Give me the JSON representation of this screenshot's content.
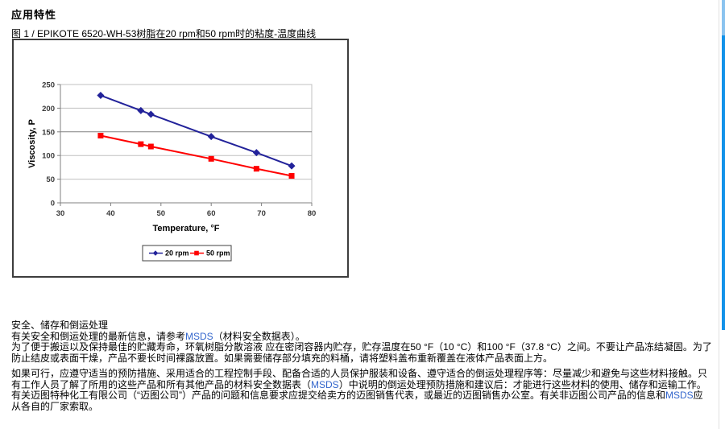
{
  "page": {
    "title": "应用特性",
    "figure_caption": "图 1 / EPIKOTE 6520-WH-53树脂在20 rpm和50 rpm时的粘度-温度曲线"
  },
  "chart_data": {
    "type": "line",
    "title": "",
    "xlabel": "Temperature, °F",
    "ylabel": "Viscosity, P",
    "xlim": [
      30,
      80
    ],
    "ylim": [
      0,
      250
    ],
    "xticks": [
      30,
      40,
      50,
      60,
      70,
      80
    ],
    "yticks": [
      0,
      50,
      100,
      150,
      200,
      250
    ],
    "grid": true,
    "legend_position": "bottom",
    "x": [
      38,
      46,
      48,
      60,
      69,
      76
    ],
    "series": [
      {
        "name": "20 rpm",
        "color": "#22229a",
        "marker": "diamond",
        "values": [
          227,
          195,
          187,
          140,
          106,
          78
        ]
      },
      {
        "name": "50 rpm",
        "color": "#ff0000",
        "marker": "square",
        "values": [
          142,
          124,
          119,
          93,
          72,
          57
        ]
      }
    ]
  },
  "safety": {
    "heading": "安全、储存和倒运处理",
    "paragraphs": [
      [
        {
          "text": "有关安全和倒运处理的最新信息，请参考"
        },
        {
          "text": "MSDS",
          "link": true
        },
        {
          "text": "（材料安全数据表）。"
        }
      ],
      [
        {
          "text": "为了便于搬运以及保持最佳的贮藏寿命，环氧树脂分散溶液 应在密闭容器内贮存，贮存温度在50 °F（10 °C）和100 °F（37.8 °C）之间。不要让产品冻结凝固。为了防止结皮或表面干燥，产品不要长时间裸露放置。如果需要储存部分填充的料桶，请将塑料盖布重新覆盖在液体产品表面上方。"
        }
      ],
      [
        {
          "text": "如果可行，应遵守适当的预防措施、采用适合的工程控制手段、配备合适的人员保护服装和设备、遵守适合的倒运处理程序等：尽量减少和避免与这些材料接触。只有工作人员了解了所用的这些产品和所有其他产品的材料安全数据表（"
        },
        {
          "text": "MSDS",
          "link": true
        },
        {
          "text": "）中说明的倒运处理预防措施和建议后：才能进行这些材料的使用、储存和运输工作。有关迈图特种化工有限公司（“迈图公司”）产品的问题和信息要求应提交给卖方的迈图销售代表，或最近的迈图销售办公室。有关非迈图公司产品的信息和"
        },
        {
          "text": "MSDS",
          "link": true
        },
        {
          "text": "应从各自的厂家索取。"
        }
      ]
    ]
  },
  "colors": {
    "link_blue": "#3366cc",
    "scrollbar_thumb": "#1292e9",
    "scrollbar_thumb_light": "#8ac3ef",
    "gridline": "#c0c0c0",
    "gridline_dark": "#808080",
    "figure_border": "#3d3d3d"
  }
}
